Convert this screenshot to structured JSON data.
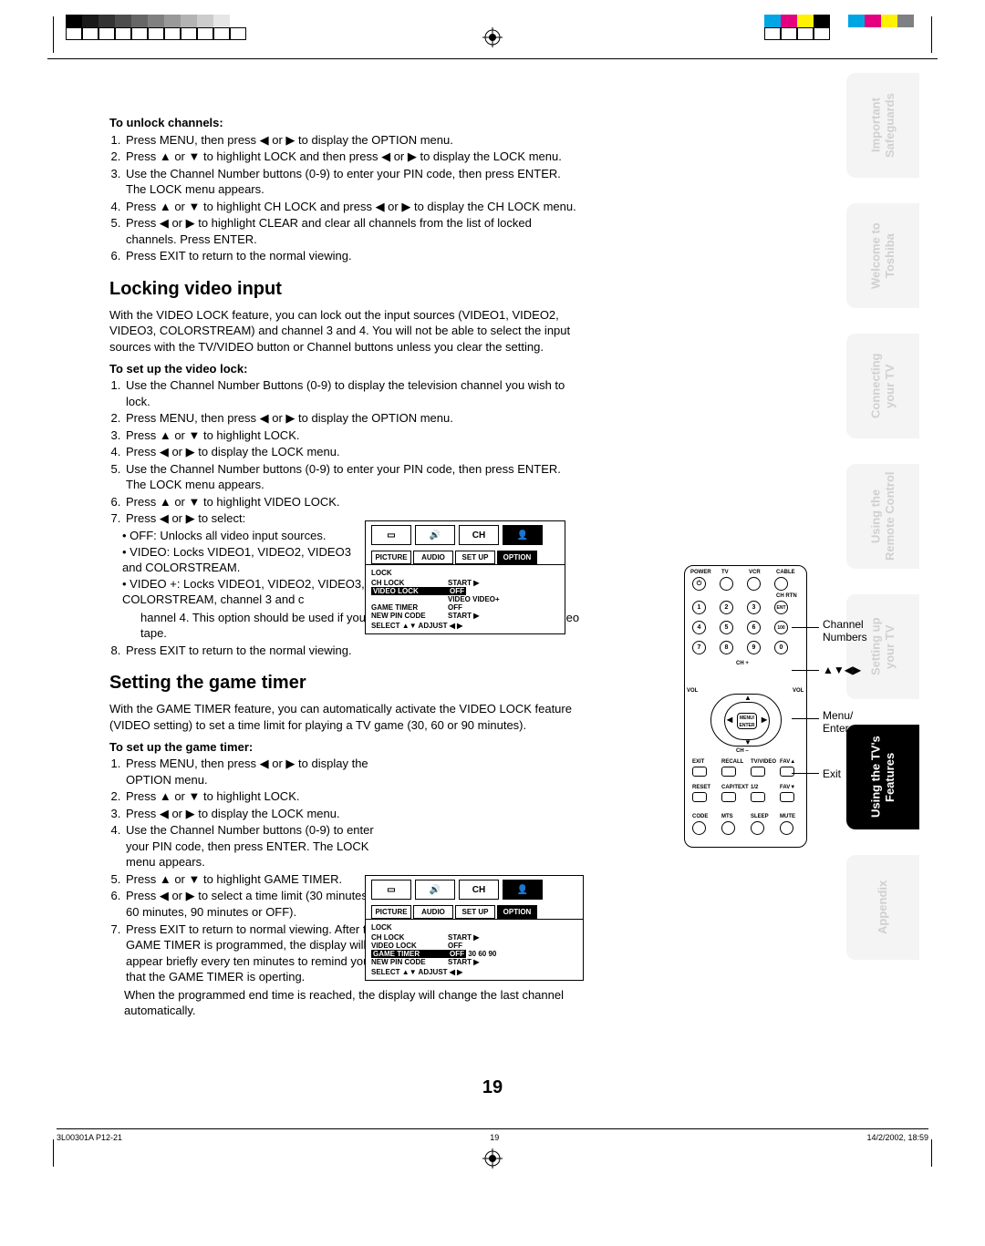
{
  "colorBarsLeft": [
    "#000000",
    "#1a1a1a",
    "#333333",
    "#4d4d4d",
    "#666666",
    "#808080",
    "#999999",
    "#b3b3b3",
    "#cccccc",
    "#e6e6e6",
    "#ffffff"
  ],
  "colorBarsRight": [
    "#00a5e3",
    "#e4007f",
    "#fff100",
    "#000000"
  ],
  "colorBarsRight2": [
    "#00a5e3",
    "#e4007f",
    "#fff100",
    "#7e8083"
  ],
  "unlock": {
    "heading": "To unlock channels:",
    "steps": [
      "Press MENU, then press ◀ or ▶ to display the OPTION menu.",
      "Press ▲ or ▼ to highlight LOCK and then press ◀ or ▶ to display the LOCK menu.",
      "Use the Channel Number buttons (0-9) to enter your PIN code, then press ENTER. The LOCK menu appears.",
      "Press ▲ or ▼ to highlight CH LOCK and press ◀ or ▶ to display the CH LOCK menu.",
      "Press ◀ or ▶ to highlight CLEAR and clear all channels from the list of locked channels. Press ENTER.",
      "Press EXIT to return to the normal viewing."
    ]
  },
  "videoLock": {
    "title": "Locking video input",
    "intro": "With the VIDEO LOCK feature, you can lock out the input sources (VIDEO1, VIDEO2, VIDEO3, COLORSTREAM) and channel 3 and 4. You will not be able to select the input sources with the TV/VIDEO button or Channel buttons unless you clear the setting.",
    "heading": "To set up the video lock:",
    "steps": [
      "Use the Channel Number Buttons (0-9) to display the television channel you wish to lock.",
      "Press MENU, then press ◀ or ▶ to display the OPTION menu.",
      "Press ▲ or ▼ to highlight LOCK.",
      "Press ◀ or ▶ to display the LOCK menu.",
      "Use the Channel Number buttons (0-9) to enter your PIN code, then press ENTER. The LOCK menu appears.",
      "Press ▲ or ▼ to highlight VIDEO LOCK.",
      "Press ◀ or ▶ to select:"
    ],
    "options": [
      "OFF: Unlocks all video input sources.",
      "VIDEO: Locks VIDEO1, VIDEO2, VIDEO3 and COLORSTREAM.",
      "VIDEO +: Locks VIDEO1, VIDEO2, VIDEO3, COLORSTREAM, channel 3 and channel 4. This option should be used if you use the antenna terminal to play a video tape."
    ],
    "step8": "Press EXIT to return to the normal viewing."
  },
  "gameTimer": {
    "title": "Setting the game timer",
    "intro": "With the GAME TIMER feature, you can automatically activate the VIDEO LOCK feature (VIDEO setting) to set a time limit for playing a TV game (30, 60 or 90 minutes).",
    "heading": "To set up the game timer:",
    "steps": [
      "Press MENU, then press ◀ or ▶ to display the OPTION menu.",
      "Press ▲ or ▼ to highlight LOCK.",
      "Press ◀ or ▶ to display the LOCK menu.",
      "Use the Channel Number buttons (0-9) to enter your PIN code, then press ENTER. The LOCK menu appears.",
      "Press ▲ or ▼ to highlight GAME TIMER.",
      "Press ◀ or ▶ to select a time limit (30 minutes, 60 minutes, 90 minutes or OFF).",
      "Press EXIT to return to normal viewing. After the GAME TIMER is programmed, the display will appear briefly every ten minutes to remind you that the GAME TIMER is operting."
    ],
    "tail": "When the programmed end time is reached, the display will change the last channel automatically."
  },
  "osd1": {
    "tabs": [
      "PICTURE",
      "AUDIO",
      "SET UP",
      "OPTION"
    ],
    "title": "LOCK",
    "rows": [
      {
        "l": "CH LOCK",
        "r": "START  ▶"
      },
      {
        "l": "VIDEO LOCK",
        "r": "OFF",
        "hl": true
      },
      {
        "l": "",
        "r": "VIDEO   VIDEO+"
      },
      {
        "l": "GAME TIMER",
        "r": "OFF"
      },
      {
        "l": "NEW PIN CODE",
        "r": "START  ▶"
      }
    ],
    "select": "SELECT   ▲▼        ADJUST    ◀ ▶"
  },
  "osd2": {
    "tabs": [
      "PICTURE",
      "AUDIO",
      "SET UP",
      "OPTION"
    ],
    "title": "LOCK",
    "rows": [
      {
        "l": "CH LOCK",
        "r": "START  ▶"
      },
      {
        "l": "VIDEO LOCK",
        "r": "OFF"
      },
      {
        "l": "GAME TIMER",
        "r": "OFF   30    60    90",
        "hl": true
      },
      {
        "l": "NEW PIN CODE",
        "r": "START  ▶"
      }
    ],
    "select": "SELECT   ▲▼        ADJUST    ◀ ▶"
  },
  "remote": {
    "topLabels": [
      "POWER",
      "TV",
      "VCR",
      "CABLE"
    ],
    "chrtn": "CH RTN",
    "numbers": [
      "1",
      "2",
      "3",
      "4",
      "5",
      "6",
      "7",
      "8",
      "9",
      "0"
    ],
    "ent": "ENT",
    "hundred": "100",
    "chplus": "CH +",
    "chminus": "CH –",
    "volL": "VOL",
    "volR": "VOL",
    "menuEnter": "MENU/\nENTER",
    "row1": [
      "EXIT",
      "RECALL",
      "TV/VIDEO",
      "FAV▲"
    ],
    "row2": [
      "RESET",
      "CAP/TEXT",
      "1/2",
      "FAV▼"
    ],
    "row3": [
      "CODE",
      "MTS",
      "SLEEP",
      "MUTE"
    ]
  },
  "callouts": {
    "channelNumbers": "Channel\nNumbers",
    "arrows": "▲▼◀▶",
    "menuEnter": "Menu/\nEnter",
    "exit": "Exit"
  },
  "sideTabs": [
    "Important\nSafeguards",
    "Welcome to\nToshiba",
    "Connecting\nyour TV",
    "Using the\nRemote Control",
    "Setting up\nyour TV",
    "Using the TV's\nFeatures",
    "Appendix"
  ],
  "sideTabActive": 5,
  "pageNumber": "19",
  "footer": {
    "left": "3L00301A P12-21",
    "mid": "19",
    "right": "14/2/2002, 18:59"
  }
}
